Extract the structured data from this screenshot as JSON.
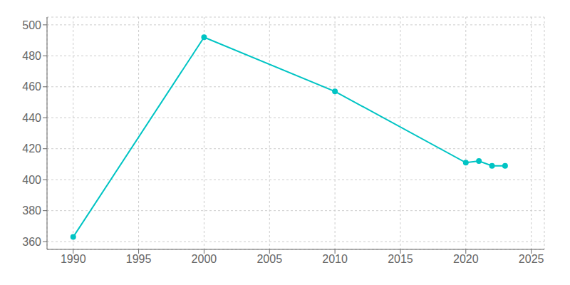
{
  "chart_data": {
    "type": "line",
    "x": [
      1990,
      2000,
      2010,
      2020,
      2021,
      2022,
      2023
    ],
    "values": [
      363,
      492,
      457,
      411,
      412,
      409,
      409
    ],
    "color": "#00C4C4",
    "marker": "circle",
    "xlim": [
      1988,
      2026
    ],
    "ylim": [
      355,
      505
    ],
    "xticks": [
      1990,
      1995,
      2000,
      2005,
      2010,
      2015,
      2020,
      2025
    ],
    "yticks": [
      360,
      380,
      400,
      420,
      440,
      460,
      480,
      500
    ],
    "grid": true
  }
}
